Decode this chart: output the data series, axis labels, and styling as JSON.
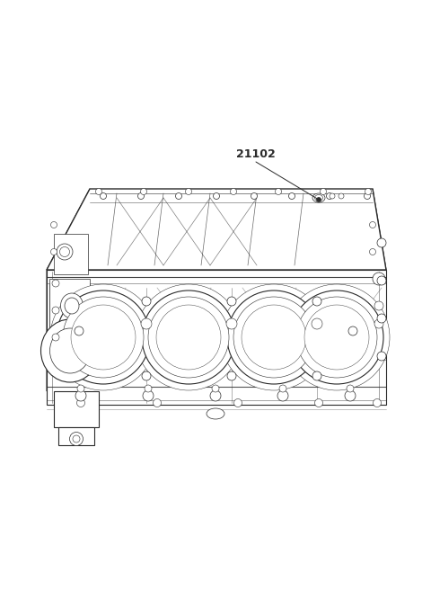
{
  "background_color": "#ffffff",
  "line_color": "#2a2a2a",
  "label_text": "21102",
  "fig_width": 4.8,
  "fig_height": 6.56,
  "dpi": 100,
  "lw_main": 0.8,
  "lw_thin": 0.5,
  "lw_thick": 1.0,
  "label_fontsize": 9,
  "label_fontweight": "bold",
  "leader_line_color": "#2a2a2a"
}
